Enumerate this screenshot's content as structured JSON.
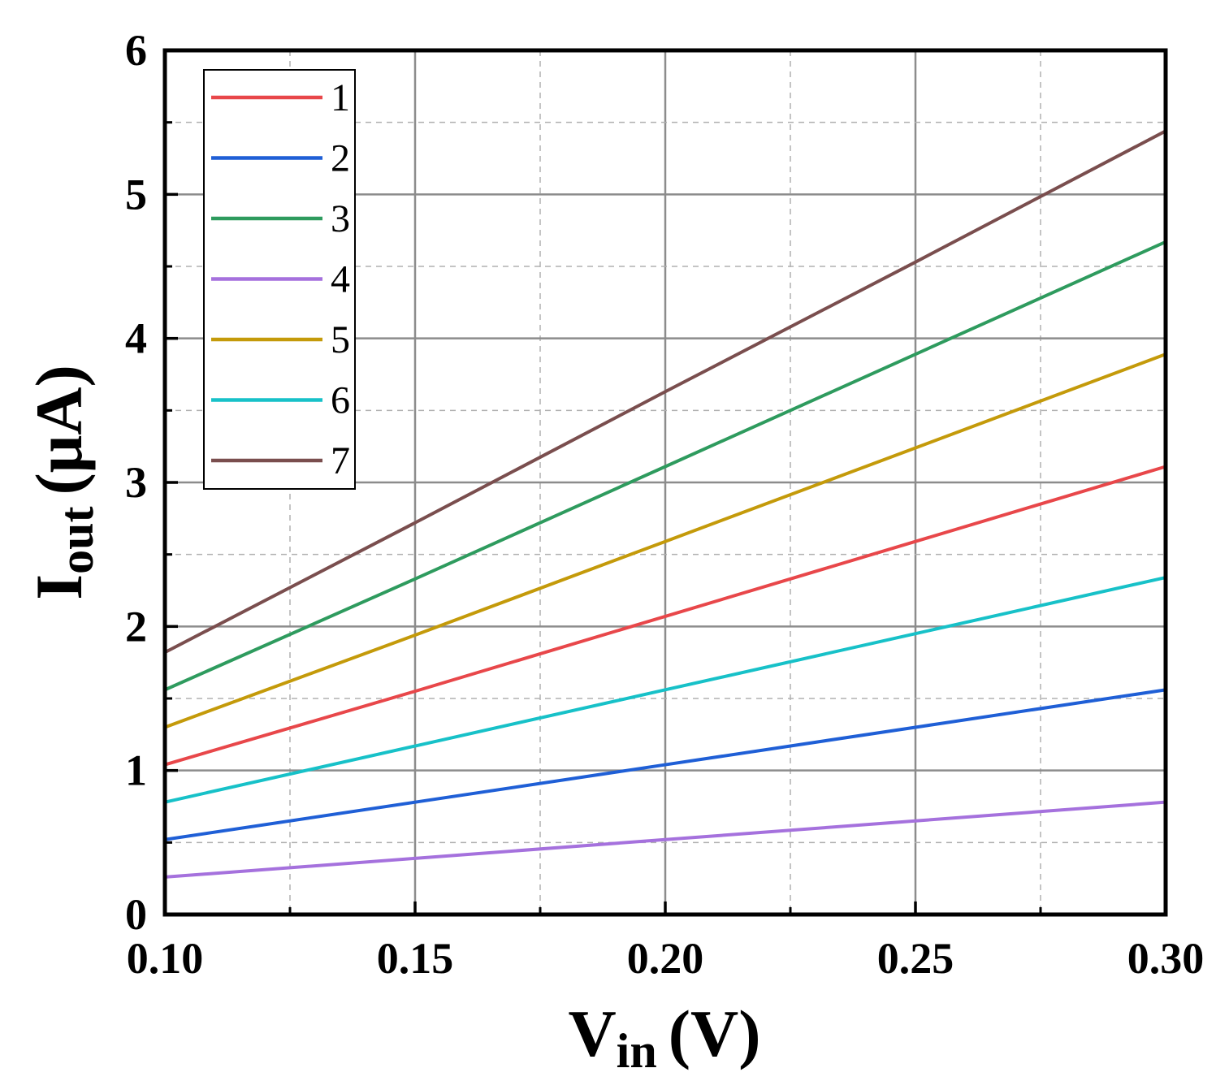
{
  "chart_data": {
    "type": "line",
    "title": "",
    "xlabel": {
      "main": "V",
      "sub": "in",
      "unit": "(V)"
    },
    "ylabel": {
      "main": "I",
      "sub": "out",
      "unit": "(μA)"
    },
    "xlim": [
      0.1,
      0.3
    ],
    "ylim": [
      0,
      6
    ],
    "x_ticks": [
      0.1,
      0.15,
      0.2,
      0.25,
      0.3
    ],
    "x_tick_labels": [
      "0.10",
      "0.15",
      "0.20",
      "0.25",
      "0.30"
    ],
    "y_ticks": [
      0,
      1,
      2,
      3,
      4,
      5,
      6
    ],
    "y_tick_labels": [
      "0",
      "1",
      "2",
      "3",
      "4",
      "5",
      "6"
    ],
    "grid": true,
    "legend_position": "top-left",
    "x": [
      0.1,
      0.15,
      0.2,
      0.25,
      0.3
    ],
    "series": [
      {
        "name": "1",
        "color": "#e8474a",
        "values": [
          1.04,
          1.55,
          2.07,
          2.59,
          3.11
        ]
      },
      {
        "name": "2",
        "color": "#1f5fd6",
        "values": [
          0.52,
          0.78,
          1.04,
          1.3,
          1.56
        ]
      },
      {
        "name": "3",
        "color": "#2e9b5e",
        "values": [
          1.56,
          2.33,
          3.11,
          3.89,
          4.67
        ]
      },
      {
        "name": "4",
        "color": "#a571dd",
        "values": [
          0.26,
          0.39,
          0.52,
          0.65,
          0.78
        ]
      },
      {
        "name": "5",
        "color": "#c49a0a",
        "values": [
          1.3,
          1.94,
          2.59,
          3.24,
          3.89
        ]
      },
      {
        "name": "6",
        "color": "#17c1c8",
        "values": [
          0.78,
          1.17,
          1.56,
          1.95,
          2.34
        ]
      },
      {
        "name": "7",
        "color": "#7a4e4e",
        "values": [
          1.82,
          2.72,
          3.63,
          4.53,
          5.44
        ]
      }
    ]
  }
}
